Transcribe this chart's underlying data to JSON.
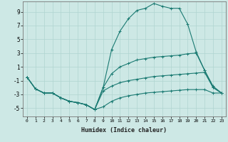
{
  "xlabel": "Humidex (Indice chaleur)",
  "bg_color": "#cde8e5",
  "grid_color": "#b0d4d0",
  "line_color": "#1a7a72",
  "xlim": [
    -0.5,
    23.5
  ],
  "ylim": [
    -6.2,
    10.5
  ],
  "xticks": [
    0,
    1,
    2,
    3,
    4,
    5,
    6,
    7,
    8,
    9,
    10,
    11,
    12,
    13,
    14,
    15,
    16,
    17,
    18,
    19,
    20,
    21,
    22,
    23
  ],
  "yticks": [
    -5,
    -3,
    -1,
    1,
    3,
    5,
    7,
    9
  ],
  "series": [
    {
      "x": [
        0,
        1,
        2,
        3,
        4,
        5,
        6,
        7,
        8,
        9,
        10,
        11,
        12,
        13,
        14,
        15,
        16,
        17,
        18,
        19,
        20,
        21,
        22,
        23
      ],
      "y": [
        -0.5,
        -2.2,
        -2.8,
        -2.8,
        -3.5,
        -4.0,
        -4.2,
        -4.5,
        -5.2,
        -4.8,
        -4.0,
        -3.5,
        -3.2,
        -3.0,
        -2.8,
        -2.7,
        -2.6,
        -2.5,
        -2.4,
        -2.3,
        -2.3,
        -2.3,
        -2.8,
        -2.8
      ]
    },
    {
      "x": [
        0,
        1,
        2,
        3,
        4,
        5,
        6,
        7,
        8,
        9,
        10,
        11,
        12,
        13,
        14,
        15,
        16,
        17,
        18,
        19,
        20,
        21,
        22,
        23
      ],
      "y": [
        -0.5,
        -2.2,
        -2.8,
        -2.8,
        -3.5,
        -4.0,
        -4.2,
        -4.5,
        -5.2,
        -2.5,
        -1.8,
        -1.3,
        -1.0,
        -0.8,
        -0.6,
        -0.4,
        -0.3,
        -0.2,
        -0.1,
        0.0,
        0.1,
        0.2,
        -2.0,
        -2.8
      ]
    },
    {
      "x": [
        0,
        1,
        2,
        3,
        4,
        5,
        6,
        7,
        8,
        9,
        10,
        11,
        12,
        13,
        14,
        15,
        16,
        17,
        18,
        19,
        20,
        21,
        22,
        23
      ],
      "y": [
        -0.5,
        -2.2,
        -2.8,
        -2.8,
        -3.5,
        -4.0,
        -4.2,
        -4.5,
        -5.2,
        -2.0,
        0.0,
        1.0,
        1.5,
        2.0,
        2.2,
        2.4,
        2.5,
        2.6,
        2.7,
        2.9,
        3.0,
        0.5,
        -1.8,
        -2.8
      ]
    },
    {
      "x": [
        0,
        1,
        2,
        3,
        4,
        5,
        6,
        7,
        8,
        9,
        10,
        11,
        12,
        13,
        14,
        15,
        16,
        17,
        18,
        19,
        20,
        21,
        22,
        23
      ],
      "y": [
        -0.5,
        -2.2,
        -2.8,
        -2.8,
        -3.5,
        -4.0,
        -4.2,
        -4.5,
        -5.2,
        -2.0,
        3.5,
        6.2,
        8.0,
        9.2,
        9.5,
        10.2,
        9.8,
        9.5,
        9.5,
        7.2,
        3.2,
        0.5,
        -2.0,
        -2.8
      ]
    }
  ]
}
